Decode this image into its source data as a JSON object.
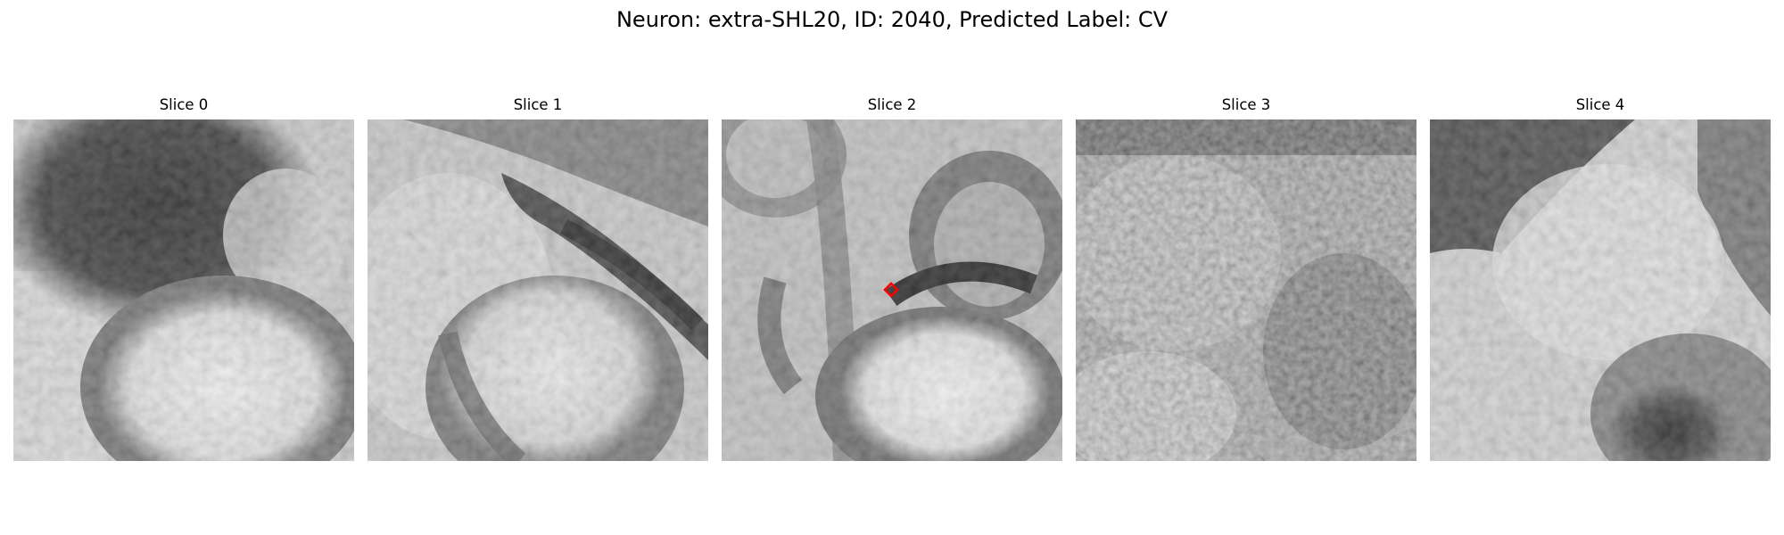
{
  "figure": {
    "title": "Neuron: extra-SHL20, ID: 2040, Predicted Label: CV"
  },
  "panels": [
    {
      "title": "Slice 0",
      "description": "Grayscale EM crop: dark region upper-left, bright oval lower-center"
    },
    {
      "title": "Slice 1",
      "description": "Grayscale EM crop: dark diagonal membrane upper-right, bright region center"
    },
    {
      "title": "Slice 2",
      "description": "Grayscale EM crop with red diamond marker at center; dark membrane curving above bright oval"
    },
    {
      "title": "Slice 3",
      "description": "Noisy grayscale EM crop, dark band at top"
    },
    {
      "title": "Slice 4",
      "description": "Grayscale EM crop: dark upper-left, dark blob lower-right"
    }
  ],
  "marker": {
    "slice": 2,
    "color": "#ff0000",
    "shape": "diamond"
  }
}
